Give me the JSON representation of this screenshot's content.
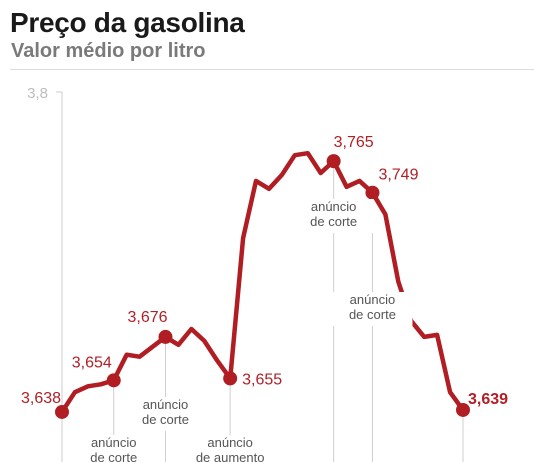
{
  "header": {
    "title": "Preço da gasolina",
    "subtitle": "Valor médio por litro"
  },
  "colors": {
    "line": "#b01e24",
    "axis": "#cccccc",
    "guide": "#cfcfcf"
  },
  "chart_data": {
    "type": "line",
    "title": "Preço da gasolina",
    "subtitle": "Valor médio por litro",
    "ylim": [
      3.56,
      3.8
    ],
    "yticks": [
      {
        "value": 3.8,
        "label": "3,8"
      }
    ],
    "grid": false,
    "series": [
      {
        "values": [
          3.638,
          3.648,
          3.651,
          3.652,
          3.654,
          3.667,
          3.666,
          3.671,
          3.676,
          3.672,
          3.68,
          3.674,
          3.664,
          3.655,
          3.726,
          3.755,
          3.751,
          3.758,
          3.768,
          3.769,
          3.759,
          3.765,
          3.752,
          3.755,
          3.749,
          3.738,
          3.704,
          3.684,
          3.676,
          3.677,
          3.648,
          3.639
        ]
      }
    ],
    "highlights": [
      {
        "index": 0,
        "label": "3,638",
        "bold": false
      },
      {
        "index": 4,
        "label": "3,654",
        "bold": false
      },
      {
        "index": 8,
        "label": "3,676",
        "bold": false
      },
      {
        "index": 13,
        "label": "3,655",
        "bold": false
      },
      {
        "index": 21,
        "label": "3,765",
        "bold": false
      },
      {
        "index": 24,
        "label": "3,749",
        "bold": false
      },
      {
        "index": 31,
        "label": "3,639",
        "bold": true
      }
    ],
    "annotations": [
      {
        "index": 0,
        "lines": []
      },
      {
        "index": 4,
        "lines": [
          "anúncio",
          "de corte"
        ]
      },
      {
        "index": 8,
        "lines": [
          "anúncio",
          "de corte"
        ]
      },
      {
        "index": 13,
        "lines": [
          "anúncio",
          "de aumento"
        ]
      },
      {
        "index": 21,
        "lines": [
          "anúncio",
          "de corte"
        ]
      },
      {
        "index": 24,
        "lines": [
          "anúncio",
          "de corte"
        ]
      },
      {
        "index": 31,
        "lines": []
      }
    ]
  }
}
